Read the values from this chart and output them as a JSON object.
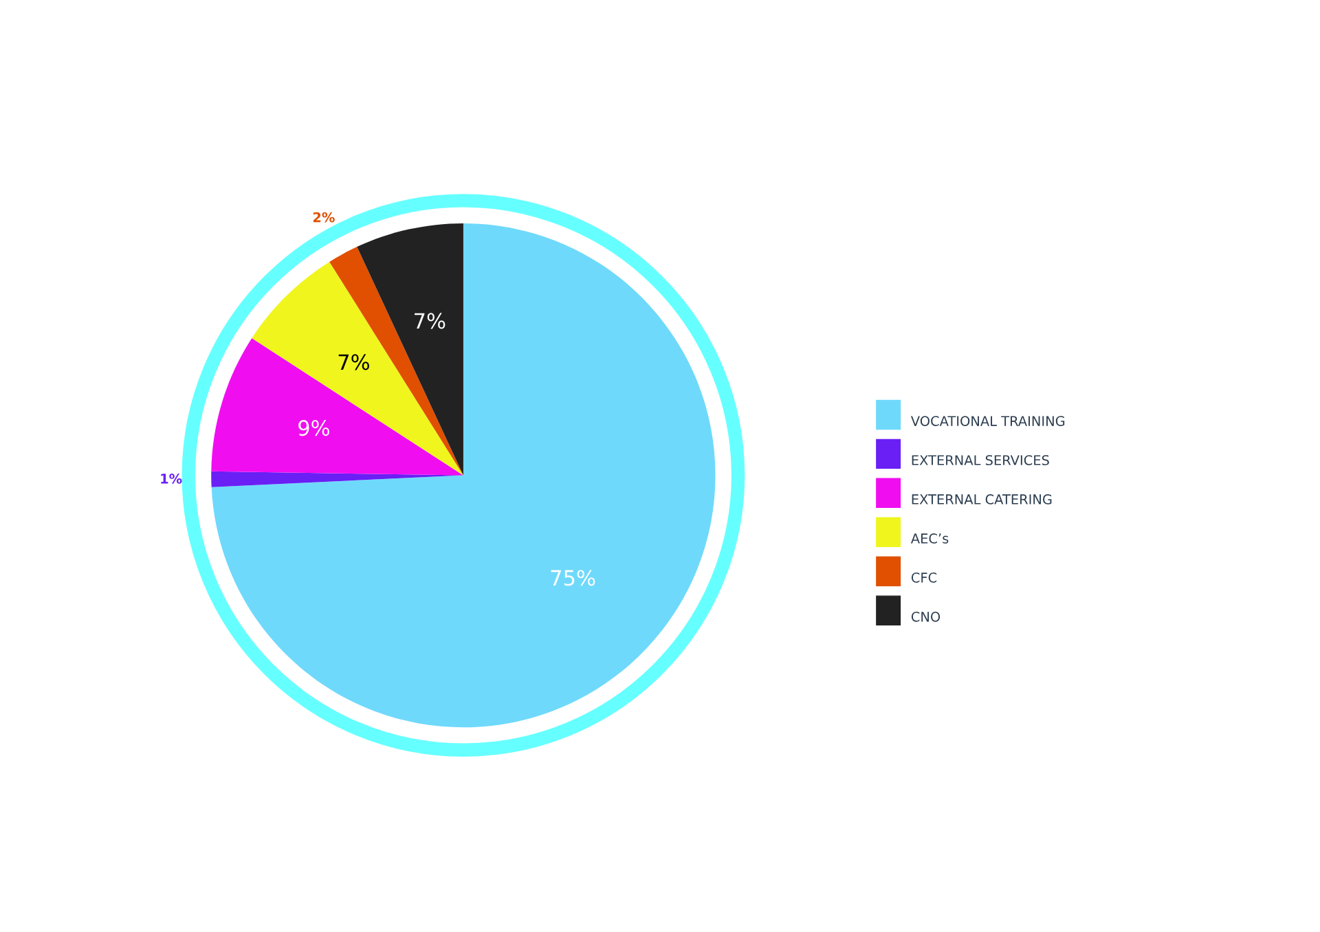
{
  "chart_data": {
    "type": "pie",
    "categories": [
      "VOCATIONAL TRAINING",
      "EXTERNAL SERVICES",
      "EXTERNAL CATERING",
      "AEC’s",
      "CFC",
      "CNO"
    ],
    "values": [
      75,
      1,
      9,
      7,
      2,
      7
    ],
    "colors": [
      "#6fd9fb",
      "#6a1ff5",
      "#f00ef0",
      "#f0f51e",
      "#e05000",
      "#222222"
    ],
    "value_labels": [
      "75%",
      "1%",
      "9%",
      "7%",
      "2%",
      "7%"
    ],
    "legend": "right"
  }
}
